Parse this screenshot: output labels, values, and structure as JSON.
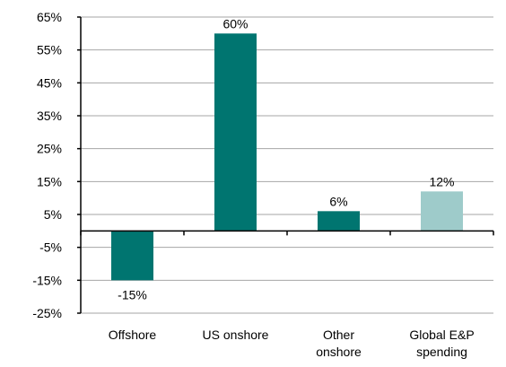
{
  "chart_data": {
    "type": "bar",
    "title": "",
    "xlabel": "",
    "ylabel": "",
    "categories": [
      [
        "Offshore"
      ],
      [
        "US onshore"
      ],
      [
        "Other",
        "onshore"
      ],
      [
        "Global E&P",
        "spending"
      ]
    ],
    "values": [
      -15,
      60,
      6,
      12
    ],
    "data_labels": [
      "-15%",
      "60%",
      "6%",
      "12%"
    ],
    "bar_colors": [
      "#007570",
      "#007570",
      "#007570",
      "#9ecbca"
    ],
    "ylim": [
      -25,
      65
    ],
    "yticks": [
      -25,
      -15,
      -5,
      5,
      15,
      25,
      35,
      45,
      55,
      65
    ],
    "ytick_labels": [
      "-25%",
      "-15%",
      "-5%",
      "5%",
      "15%",
      "25%",
      "35%",
      "45%",
      "55%",
      "65%"
    ],
    "grid": true,
    "legend": "none"
  }
}
